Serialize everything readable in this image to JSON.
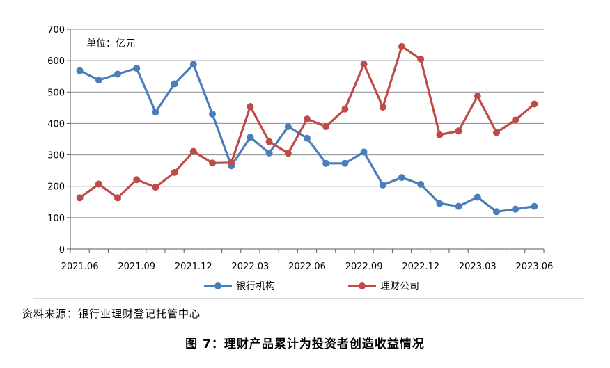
{
  "chart_data": {
    "type": "line",
    "unit_label": "单位：亿元",
    "ylim": [
      0,
      700
    ],
    "y_ticks": [
      0,
      100,
      200,
      300,
      400,
      500,
      600,
      700
    ],
    "categories": [
      "2021.06",
      "2021.07",
      "2021.08",
      "2021.09",
      "2021.10",
      "2021.11",
      "2021.12",
      "2022.01",
      "2022.02",
      "2022.03",
      "2022.04",
      "2022.05",
      "2022.06",
      "2022.07",
      "2022.08",
      "2022.09",
      "2022.10",
      "2022.11",
      "2022.12",
      "2023.01",
      "2023.02",
      "2023.03",
      "2023.04",
      "2023.05",
      "2023.06"
    ],
    "x_tick_labels": [
      "2021.06",
      "2021.09",
      "2021.12",
      "2022.03",
      "2022.06",
      "2022.09",
      "2022.12",
      "2023.03",
      "2023.06"
    ],
    "grid": "horizontal",
    "legend_position": "bottom",
    "series": [
      {
        "name": "银行机构",
        "color": "#4a7ebb",
        "values": [
          568,
          538,
          557,
          576,
          436,
          526,
          588,
          430,
          265,
          356,
          306,
          390,
          353,
          273,
          273,
          309,
          204,
          228,
          206,
          145,
          136,
          165,
          119,
          127,
          136
        ]
      },
      {
        "name": "理财公司",
        "color": "#be4b48",
        "values": [
          163,
          207,
          163,
          221,
          197,
          244,
          311,
          274,
          275,
          454,
          342,
          305,
          414,
          390,
          446,
          589,
          452,
          645,
          605,
          364,
          376,
          487,
          371,
          411,
          462
        ]
      }
    ]
  },
  "source_text": "资料来源：银行业理财登记托管中心",
  "caption": "图 7：理财产品累计为投资者创造收益情况"
}
